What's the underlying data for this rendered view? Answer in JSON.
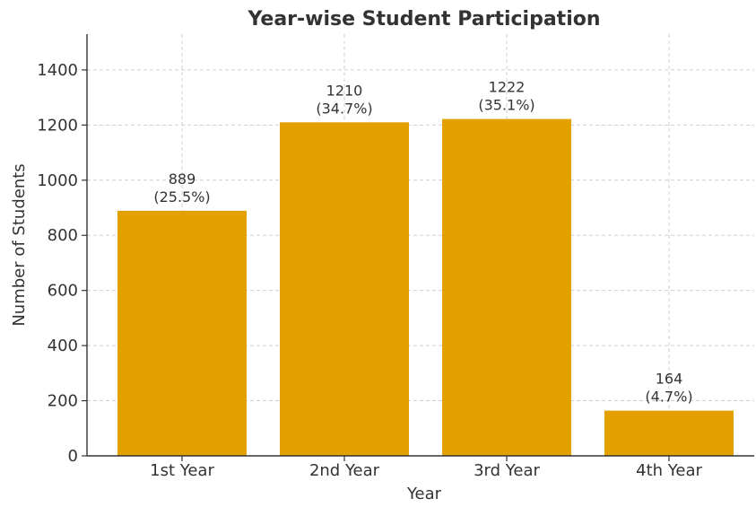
{
  "chart_data": {
    "type": "bar",
    "title": "Year-wise Student Participation",
    "xlabel": "Year",
    "ylabel": "Number of Students",
    "categories": [
      "1st Year",
      "2nd Year",
      "3rd Year",
      "4th Year"
    ],
    "values": [
      889,
      1210,
      1222,
      164
    ],
    "value_labels": [
      "889",
      "1210",
      "1222",
      "164"
    ],
    "percent_labels": [
      "(25.5%)",
      "(34.7%)",
      "(35.1%)",
      "(4.7%)"
    ],
    "ylim": [
      0,
      1530
    ],
    "yticks": [
      0,
      200,
      400,
      600,
      800,
      1000,
      1200,
      1400
    ],
    "ytick_labels": [
      "0",
      "200",
      "400",
      "600",
      "800",
      "1000",
      "1200",
      "1400"
    ],
    "grid": true,
    "legend": "none",
    "colors": {
      "bar": "#E3A100",
      "grid": "#cfcfcf",
      "axis": "#333333",
      "text": "#333333"
    }
  }
}
